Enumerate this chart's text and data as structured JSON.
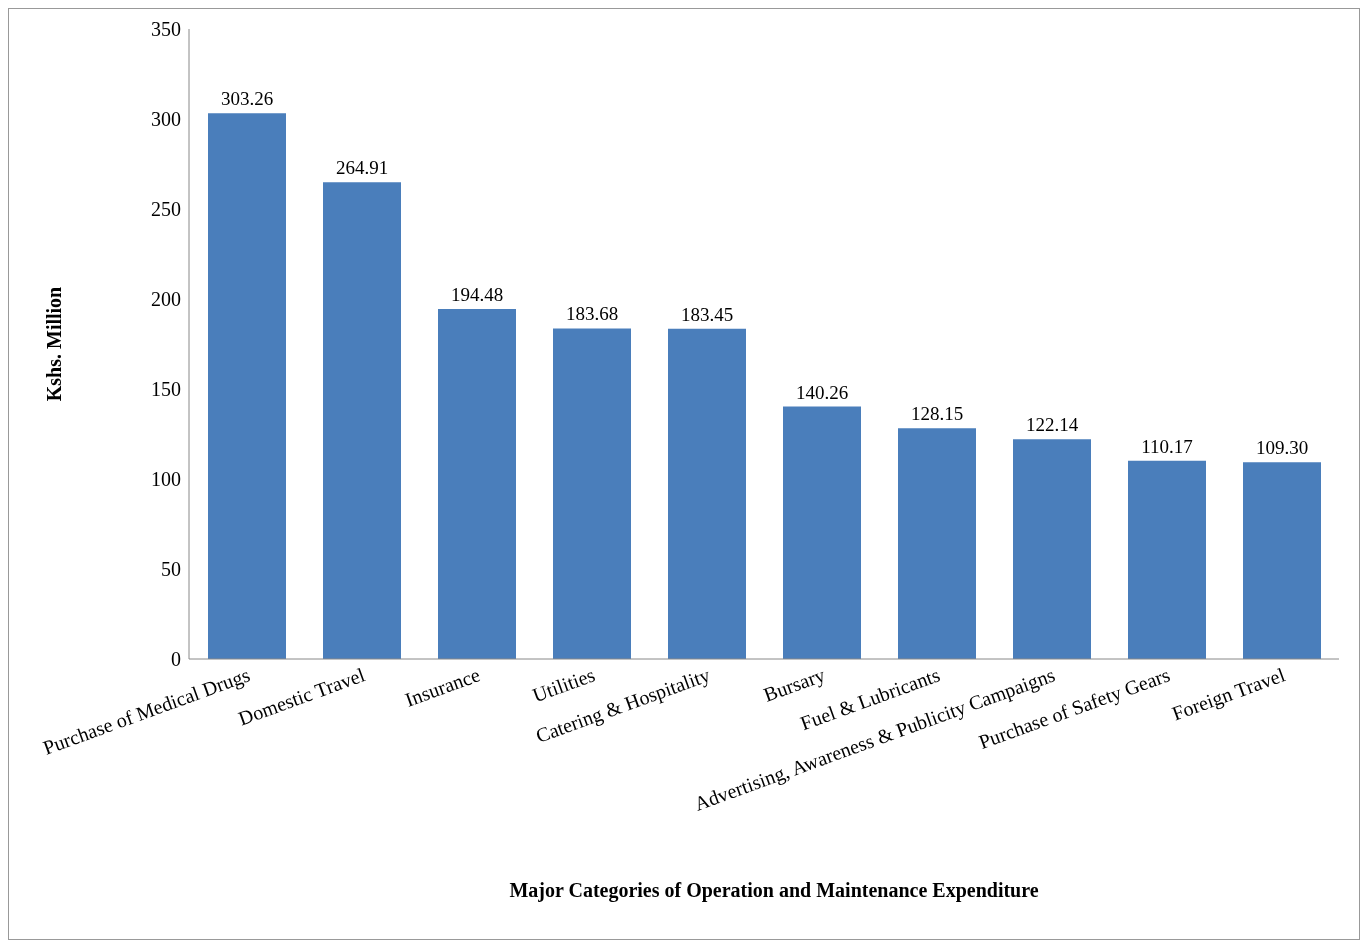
{
  "chart_data": {
    "type": "bar",
    "xlabel": "Major Categories of Operation and Maintenance Expenditure",
    "ylabel": "Kshs. Million",
    "categories": [
      "Purchase of Medical Drugs",
      "Domestic Travel",
      "Insurance",
      "Utilities",
      "Catering & Hospitality",
      "Bursary",
      "Fuel & Lubricants",
      "Advertising, Awareness & Publicity Campaigns",
      "Purchase of Safety Gears",
      "Foreign Travel"
    ],
    "values": [
      303.26,
      264.91,
      194.48,
      183.68,
      183.45,
      140.26,
      128.15,
      122.14,
      110.17,
      109.3
    ],
    "value_labels": [
      "303.26",
      "264.91",
      "194.48",
      "183.68",
      "183.45",
      "140.26",
      "128.15",
      "122.14",
      "110.17",
      "109.30"
    ],
    "color": "#4a7ebb",
    "ylim": [
      0,
      350
    ],
    "yticks": [
      0,
      50,
      100,
      150,
      200,
      250,
      300,
      350
    ],
    "grid": false
  }
}
